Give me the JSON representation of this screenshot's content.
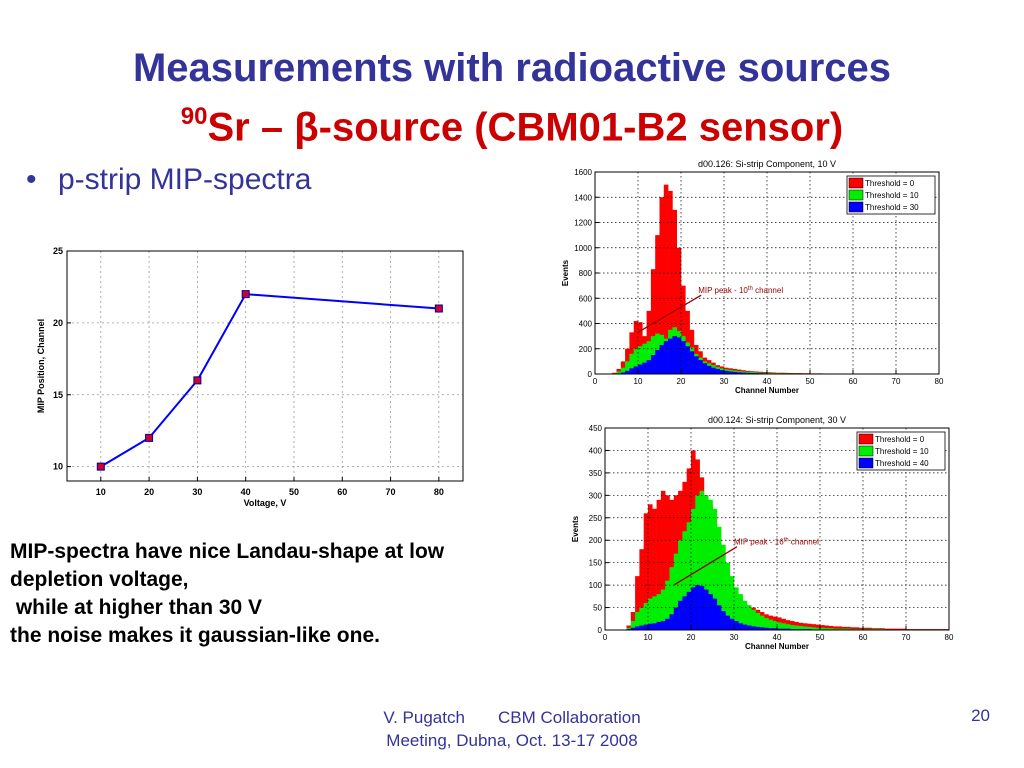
{
  "slide": {
    "title_line1": "Measurements with radioactive sources",
    "title_line2_sup": "90",
    "title_line2": "Sr – β-source (CBM01-B2 sensor)",
    "bullet": "p-strip MIP-spectra",
    "bullet_char": "•",
    "description": [
      "MIP-spectra have nice Landau-shape at low",
      "depletion voltage,",
      " while at higher than 30 V",
      "the noise makes it gaussian-like one."
    ],
    "footer_line1": "V. Pugatch       CBM Collaboration",
    "footer_line2": "Meeting, Dubna, Oct. 13-17 2008",
    "page_number": "20",
    "colors": {
      "title": "#333399",
      "subtitle": "#cc0000",
      "text": "#000000"
    }
  },
  "chart_data": [
    {
      "type": "line",
      "title": "",
      "xlabel": "Voltage, V",
      "ylabel": "MIP Position, Channel",
      "xlim": [
        3,
        85
      ],
      "ylim": [
        9,
        25
      ],
      "xticks": [
        10,
        20,
        30,
        40,
        50,
        60,
        70,
        80
      ],
      "yticks": [
        10,
        15,
        20,
        25
      ],
      "grid": true,
      "series": [
        {
          "x": [
            10,
            20,
            30,
            40,
            80
          ],
          "y": [
            10,
            12,
            16,
            22,
            21
          ],
          "color": "#0000ff",
          "marker_color": "#cc0033"
        }
      ]
    },
    {
      "type": "bar",
      "title": "d00.126: Si-strip Component, 10 V",
      "xlabel": "Channel Number",
      "ylabel": "Events",
      "xlim": [
        0,
        80
      ],
      "ylim": [
        0,
        1600
      ],
      "xticks": [
        0,
        10,
        20,
        30,
        40,
        50,
        60,
        70,
        80
      ],
      "yticks": [
        0,
        200,
        400,
        600,
        800,
        1000,
        1200,
        1400,
        1600
      ],
      "grid": true,
      "legend_position": "top-right",
      "annotation": {
        "text": "MIP peak - 10",
        "sup": "th",
        "suffix": " channel",
        "target_x": 10,
        "target_y": 330,
        "text_x": 24,
        "text_y": 640
      },
      "series": [
        {
          "name": "Threshold = 0",
          "color": "#ff0000",
          "values": [
            0,
            0,
            0,
            0,
            10,
            40,
            100,
            200,
            330,
            420,
            410,
            300,
            500,
            830,
            1100,
            1400,
            1500,
            1450,
            1300,
            1000,
            700,
            500,
            350,
            230,
            180,
            130,
            110,
            90,
            70,
            60,
            50,
            45,
            40,
            35,
            30,
            25,
            22,
            20,
            18,
            16,
            14,
            12,
            10,
            10,
            9,
            8,
            7,
            7,
            6,
            6,
            5,
            5,
            5,
            4,
            4,
            4,
            3,
            3,
            3,
            3,
            3,
            2,
            2,
            2,
            2,
            2,
            2,
            2,
            1,
            1,
            1,
            1,
            1,
            1,
            1,
            1,
            1,
            1,
            1,
            1
          ]
        },
        {
          "name": "Threshold = 10",
          "color": "#00ee00",
          "values": [
            0,
            0,
            0,
            0,
            5,
            20,
            50,
            100,
            160,
            200,
            220,
            240,
            260,
            300,
            320,
            310,
            280,
            350,
            370,
            340,
            300,
            250,
            210,
            160,
            130,
            100,
            85,
            70,
            55,
            45,
            38,
            32,
            27,
            23,
            20,
            17,
            15,
            13,
            11,
            10,
            9,
            8,
            7,
            6,
            6,
            5,
            5,
            4,
            4,
            4,
            3,
            3,
            3,
            3,
            2,
            2,
            2,
            2,
            2,
            2,
            2,
            1,
            1,
            1,
            1,
            1,
            1,
            1,
            1,
            1,
            1,
            1,
            1,
            1,
            1,
            1,
            1,
            1,
            1,
            1
          ]
        },
        {
          "name": "Threshold = 30",
          "color": "#0000ff",
          "values": [
            0,
            0,
            0,
            0,
            2,
            5,
            12,
            25,
            45,
            60,
            75,
            90,
            110,
            150,
            190,
            230,
            260,
            280,
            300,
            290,
            260,
            220,
            180,
            140,
            110,
            85,
            65,
            50,
            40,
            30,
            25,
            20,
            16,
            13,
            11,
            9,
            8,
            7,
            6,
            5,
            4,
            4,
            3,
            3,
            3,
            2,
            2,
            2,
            2,
            2,
            1,
            1,
            1,
            1,
            1,
            1,
            1,
            1,
            1,
            1,
            1,
            1,
            1,
            1,
            1,
            1,
            1,
            1,
            1,
            1,
            0,
            0,
            0,
            0,
            0,
            0,
            0,
            0,
            0,
            0
          ]
        }
      ]
    },
    {
      "type": "bar",
      "title": "d00.124: Si-strip Component, 30 V",
      "xlabel": "Channel Number",
      "ylabel": "Events",
      "xlim": [
        0,
        80
      ],
      "ylim": [
        0,
        450
      ],
      "xticks": [
        0,
        10,
        20,
        30,
        40,
        50,
        60,
        70,
        80
      ],
      "yticks": [
        0,
        50,
        100,
        150,
        200,
        250,
        300,
        350,
        400,
        450
      ],
      "grid": true,
      "legend_position": "top-right",
      "annotation": {
        "text": "MIP peak - 16",
        "sup": "th",
        "suffix": " channel",
        "target_x": 16,
        "target_y": 100,
        "text_x": 30,
        "text_y": 190
      },
      "series": [
        {
          "name": "Threshold = 0",
          "color": "#ff0000",
          "values": [
            0,
            0,
            0,
            0,
            0,
            10,
            40,
            120,
            180,
            260,
            280,
            270,
            290,
            310,
            300,
            290,
            300,
            310,
            330,
            360,
            400,
            380,
            340,
            300,
            280,
            250,
            200,
            140,
            110,
            90,
            80,
            70,
            60,
            55,
            50,
            45,
            40,
            35,
            32,
            30,
            28,
            25,
            22,
            20,
            18,
            16,
            15,
            14,
            13,
            12,
            11,
            10,
            9,
            8,
            8,
            7,
            7,
            6,
            6,
            5,
            5,
            5,
            4,
            4,
            4,
            3,
            3,
            3,
            3,
            3,
            2,
            2,
            2,
            2,
            2,
            2,
            2,
            2,
            2,
            2
          ]
        },
        {
          "name": "Threshold = 10",
          "color": "#00ee00",
          "values": [
            0,
            0,
            0,
            0,
            0,
            5,
            20,
            40,
            50,
            60,
            70,
            75,
            80,
            90,
            110,
            140,
            170,
            200,
            220,
            240,
            270,
            300,
            310,
            300,
            290,
            270,
            230,
            190,
            150,
            120,
            95,
            80,
            65,
            55,
            45,
            38,
            32,
            27,
            23,
            20,
            17,
            15,
            13,
            11,
            10,
            9,
            8,
            7,
            6,
            5,
            5,
            4,
            4,
            3,
            3,
            3,
            3,
            2,
            2,
            2,
            2,
            2,
            2,
            2,
            2,
            1,
            1,
            1,
            1,
            1,
            1,
            1,
            1,
            1,
            1,
            1,
            1,
            1,
            1,
            1
          ]
        },
        {
          "name": "Threshold = 40",
          "color": "#0000ff",
          "values": [
            0,
            0,
            0,
            0,
            0,
            2,
            5,
            8,
            10,
            12,
            14,
            15,
            18,
            20,
            25,
            35,
            50,
            65,
            75,
            85,
            95,
            100,
            98,
            90,
            80,
            70,
            55,
            42,
            32,
            25,
            20,
            15,
            12,
            10,
            8,
            7,
            6,
            5,
            4,
            4,
            3,
            3,
            3,
            2,
            2,
            2,
            2,
            2,
            1,
            1,
            1,
            1,
            1,
            1,
            1,
            1,
            1,
            1,
            1,
            1,
            1,
            1,
            1,
            1,
            1,
            1,
            1,
            1,
            1,
            1,
            0,
            0,
            0,
            0,
            0,
            0,
            0,
            0,
            0,
            0
          ]
        }
      ]
    }
  ]
}
